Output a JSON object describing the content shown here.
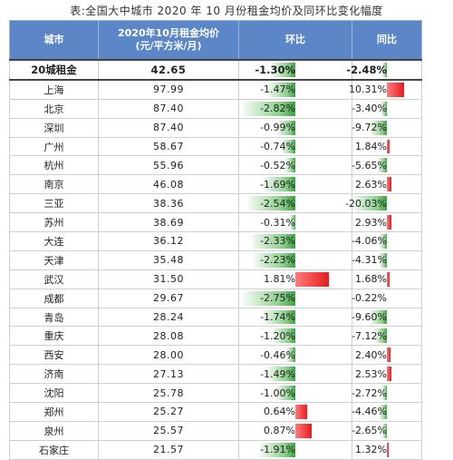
{
  "title": "表:全国大中城市 2020 年 10 月份租金均价及同环比变化幅度",
  "headers": {
    "city": "城市",
    "rent_line1": "2020年10月租金均价",
    "rent_line2": "(元/平方米/月)",
    "mom": "环比",
    "yoy": "同比"
  },
  "colors": {
    "header_bg": "#5b86c7",
    "neg_bar": "#3ea244",
    "pos_bar": "#e51d1d"
  },
  "rows": [
    {
      "city": "20城租金",
      "rent": "42.65",
      "mom": "-1.30%",
      "yoy": "-2.48%",
      "mom_v": -1.3,
      "yoy_v": -2.48,
      "total": true
    },
    {
      "city": "上海",
      "rent": "97.99",
      "mom": "-1.47%",
      "yoy": "10.31%",
      "mom_v": -1.47,
      "yoy_v": 10.31
    },
    {
      "city": "北京",
      "rent": "87.40",
      "mom": "-2.82%",
      "yoy": "-3.40%",
      "mom_v": -2.82,
      "yoy_v": -3.4
    },
    {
      "city": "深圳",
      "rent": "87.40",
      "mom": "-0.99%",
      "yoy": "-9.72%",
      "mom_v": -0.99,
      "yoy_v": -9.72
    },
    {
      "city": "广州",
      "rent": "58.67",
      "mom": "-0.74%",
      "yoy": "1.84%",
      "mom_v": -0.74,
      "yoy_v": 1.84
    },
    {
      "city": "杭州",
      "rent": "55.96",
      "mom": "-0.52%",
      "yoy": "-5.65%",
      "mom_v": -0.52,
      "yoy_v": -5.65
    },
    {
      "city": "南京",
      "rent": "46.08",
      "mom": "-1.69%",
      "yoy": "2.63%",
      "mom_v": -1.69,
      "yoy_v": 2.63
    },
    {
      "city": "三亚",
      "rent": "38.36",
      "mom": "-2.54%",
      "yoy": "-20.03%",
      "mom_v": -2.54,
      "yoy_v": -20.03
    },
    {
      "city": "苏州",
      "rent": "38.69",
      "mom": "-0.31%",
      "yoy": "2.93%",
      "mom_v": -0.31,
      "yoy_v": 2.93
    },
    {
      "city": "大连",
      "rent": "36.12",
      "mom": "-2.33%",
      "yoy": "-4.06%",
      "mom_v": -2.33,
      "yoy_v": -4.06
    },
    {
      "city": "天津",
      "rent": "35.48",
      "mom": "-2.23%",
      "yoy": "-4.31%",
      "mom_v": -2.23,
      "yoy_v": -4.31
    },
    {
      "city": "武汉",
      "rent": "31.50",
      "mom": "1.81%",
      "yoy": "1.68%",
      "mom_v": 1.81,
      "yoy_v": 1.68
    },
    {
      "city": "成都",
      "rent": "29.67",
      "mom": "-2.75%",
      "yoy": "-0.22%",
      "mom_v": -2.75,
      "yoy_v": -0.22
    },
    {
      "city": "青岛",
      "rent": "28.24",
      "mom": "-1.74%",
      "yoy": "-9.60%",
      "mom_v": -1.74,
      "yoy_v": -9.6
    },
    {
      "city": "重庆",
      "rent": "28.08",
      "mom": "-1.20%",
      "yoy": "-7.12%",
      "mom_v": -1.2,
      "yoy_v": -7.12
    },
    {
      "city": "西安",
      "rent": "28.00",
      "mom": "-0.46%",
      "yoy": "2.40%",
      "mom_v": -0.46,
      "yoy_v": 2.4
    },
    {
      "city": "济南",
      "rent": "27.13",
      "mom": "-1.49%",
      "yoy": "2.53%",
      "mom_v": -1.49,
      "yoy_v": 2.53
    },
    {
      "city": "沈阳",
      "rent": "25.78",
      "mom": "-1.00%",
      "yoy": "-2.72%",
      "mom_v": -1.0,
      "yoy_v": -2.72
    },
    {
      "city": "郑州",
      "rent": "25.27",
      "mom": "0.64%",
      "yoy": "-4.46%",
      "mom_v": 0.64,
      "yoy_v": -4.46
    },
    {
      "city": "泉州",
      "rent": "25.57",
      "mom": "0.87%",
      "yoy": "-2.65%",
      "mom_v": 0.87,
      "yoy_v": -2.65
    },
    {
      "city": "石家庄",
      "rent": "21.57",
      "mom": "-1.91%",
      "yoy": "1.32%",
      "mom_v": -1.91,
      "yoy_v": 1.32
    }
  ]
}
